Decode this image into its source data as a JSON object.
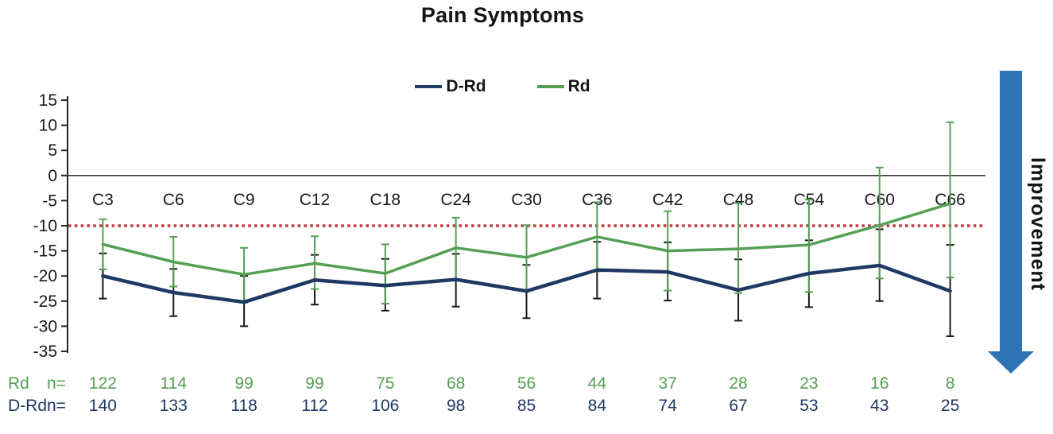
{
  "chart_data": {
    "type": "line",
    "title": "Pain Symptoms",
    "categories": [
      "C3",
      "C6",
      "C9",
      "C12",
      "C18",
      "C24",
      "C30",
      "C36",
      "C42",
      "C48",
      "C54",
      "C60",
      "C66"
    ],
    "xlabel": "",
    "ylabel": "",
    "ylim": [
      -35,
      15
    ],
    "y_ticks": [
      15,
      10,
      5,
      0,
      -5,
      -10,
      -15,
      -20,
      -25,
      -30,
      -35
    ],
    "grid": false,
    "legend_position": "top-center",
    "baseline_value": 0,
    "reference_line": {
      "value": -10,
      "color": "#C13A3A",
      "style": "dotted"
    },
    "series": [
      {
        "name": "D-Rd",
        "color": "#1F3864",
        "error_color": "#1a1a1a",
        "values": [
          -20.0,
          -23.3,
          -25.2,
          -20.8,
          -21.9,
          -20.7,
          -23.0,
          -18.8,
          -19.2,
          -22.8,
          -19.5,
          -17.9,
          -23.0
        ],
        "err_high": [
          -15.5,
          -18.6,
          -20.0,
          -15.8,
          -16.6,
          -15.6,
          -17.8,
          -13.2,
          -13.3,
          -16.7,
          -12.9,
          -10.7,
          -13.8
        ],
        "err_low": [
          -24.5,
          -28.0,
          -30.0,
          -25.7,
          -26.9,
          -26.1,
          -28.4,
          -24.5,
          -24.9,
          -28.9,
          -26.2,
          -25.0,
          -32.0
        ]
      },
      {
        "name": "Rd",
        "color": "#55A054",
        "error_color": "#55A054",
        "values": [
          -13.7,
          -17.2,
          -19.7,
          -17.5,
          -19.5,
          -14.4,
          -16.3,
          -12.2,
          -15.0,
          -14.6,
          -13.8,
          -9.9,
          -5.6
        ],
        "err_high": [
          -8.7,
          -12.2,
          -14.4,
          -12.1,
          -13.7,
          -8.4,
          -9.9,
          -5.3,
          -7.1,
          -5.5,
          -4.8,
          1.6,
          10.6
        ],
        "err_low": [
          -18.7,
          -22.1,
          -25.3,
          -22.6,
          -25.5,
          -20.6,
          -22.7,
          -19.1,
          -22.9,
          -23.4,
          -23.2,
          -20.5,
          -20.3
        ]
      }
    ],
    "improvement": {
      "label": "Improvement",
      "direction": "down",
      "arrow_color": "#2E74B5"
    },
    "counts": {
      "rows": [
        {
          "label": "Rd",
          "suffix": "n=",
          "color": "#55A054",
          "values": [
            122,
            114,
            99,
            99,
            75,
            68,
            56,
            44,
            37,
            28,
            23,
            16,
            8
          ]
        },
        {
          "label": "D-Rd",
          "suffix": "n=",
          "color": "#1F3864",
          "values": [
            140,
            133,
            118,
            112,
            106,
            98,
            85,
            84,
            74,
            67,
            53,
            43,
            25
          ]
        }
      ]
    }
  }
}
